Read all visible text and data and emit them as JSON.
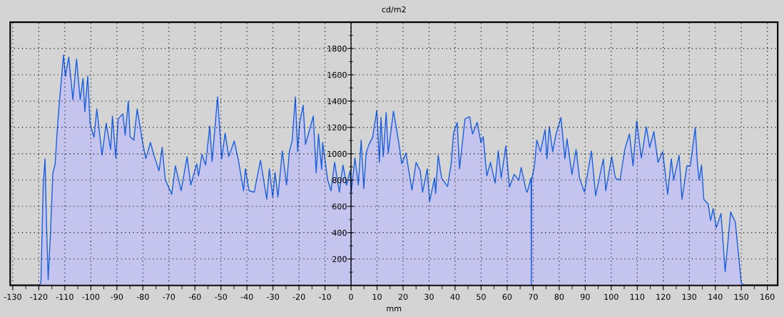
{
  "chart_data": {
    "type": "area",
    "title": "cd/m2",
    "xlabel": "mm",
    "xlim": [
      -131,
      164
    ],
    "ylim": [
      0,
      2000
    ],
    "xticks": [
      -130,
      {
        "value": -125,
        "label": null
      },
      -120,
      {
        "value": -115,
        "label": null
      },
      -110,
      {
        "value": -105,
        "label": null
      },
      -100,
      {
        "value": -95,
        "label": null
      },
      -90,
      {
        "value": -85,
        "label": null
      },
      -80,
      {
        "value": -75,
        "label": null
      },
      -70,
      {
        "value": -65,
        "label": null
      },
      -60,
      {
        "value": -55,
        "label": null
      },
      -50,
      {
        "value": -45,
        "label": null
      },
      -40,
      {
        "value": -35,
        "label": null
      },
      -30,
      {
        "value": -25,
        "label": null
      },
      -20,
      {
        "value": -15,
        "label": null
      },
      -10,
      {
        "value": -5,
        "label": null
      },
      0,
      {
        "value": 5,
        "label": null
      },
      10,
      {
        "value": 15,
        "label": null
      },
      20,
      {
        "value": 25,
        "label": null
      },
      30,
      {
        "value": 35,
        "label": null
      },
      40,
      {
        "value": 45,
        "label": null
      },
      50,
      {
        "value": 55,
        "label": null
      },
      60,
      {
        "value": 65,
        "label": null
      },
      70,
      {
        "value": 75,
        "label": null
      },
      80,
      {
        "value": 85,
        "label": null
      },
      90,
      {
        "value": 95,
        "label": null
      },
      100,
      {
        "value": 105,
        "label": null
      },
      110,
      {
        "value": 115,
        "label": null
      },
      120,
      {
        "value": 125,
        "label": null
      },
      130,
      {
        "value": 135,
        "label": null
      },
      140,
      {
        "value": 145,
        "label": null
      },
      150,
      {
        "value": 155,
        "label": null
      },
      160
    ],
    "yticks": [
      {
        "value": 100,
        "label": null
      },
      200,
      {
        "value": 300,
        "label": null
      },
      400,
      {
        "value": 500,
        "label": null
      },
      600,
      {
        "value": 700,
        "label": null
      },
      800,
      {
        "value": 900,
        "label": null
      },
      1000,
      {
        "value": 1100,
        "label": null
      },
      1200,
      {
        "value": 1300,
        "label": null
      },
      1400,
      {
        "value": 1500,
        "label": null
      },
      1600,
      {
        "value": 1700,
        "label": null
      },
      1800,
      {
        "value": 1900,
        "label": null
      }
    ],
    "grid": true,
    "legend": false,
    "series": [
      {
        "color": "#1a5fe0",
        "x": [
          -120,
          -119.2,
          -118.3,
          -117.6,
          -117.1,
          -116.4,
          -115.5,
          -114.6,
          -113.7,
          -113.1,
          -112.4,
          -111.6,
          -110.5,
          -109.8,
          -108.5,
          -106.9,
          -105.5,
          -104.1,
          -103.0,
          -102.3,
          -101.2,
          -100.3,
          -98.8,
          -97.7,
          -95.7,
          -94.1,
          -92.4,
          -91.7,
          -90.4,
          -89.5,
          -87.7,
          -86.8,
          -85.6,
          -84.9,
          -83.5,
          -82.2,
          -80.1,
          -78.9,
          -77.1,
          -75.6,
          -73.8,
          -72.6,
          -71.4,
          -68.9,
          -67.5,
          -65.3,
          -63.0,
          -61.6,
          -59.3,
          -58.6,
          -57.3,
          -55.9,
          -54.3,
          -53.4,
          -51.3,
          -49.7,
          -48.4,
          -47.0,
          -44.9,
          -43.4,
          -41.3,
          -40.6,
          -39.2,
          -37.2,
          -34.8,
          -32.4,
          -31.4,
          -30.1,
          -29.2,
          -28.1,
          -26.4,
          -24.8,
          -23.7,
          -22.6,
          -21.4,
          -20.5,
          -19.8,
          -18.4,
          -17.5,
          -14.5,
          -13.4,
          -12.5,
          -11.3,
          -10.9,
          -9.0,
          -7.7,
          -6.3,
          -4.5,
          -3.1,
          -1.7,
          -0.4,
          0.1,
          1.5,
          2.8,
          3.9,
          4.9,
          5.8,
          6.9,
          8.3,
          9.9,
          10.9,
          11.5,
          12.4,
          13.5,
          14.3,
          16.3,
          17.3,
          18.4,
          19.5,
          21.1,
          23.4,
          25.0,
          26.6,
          27.5,
          29.3,
          30.2,
          32.1,
          32.5,
          33.5,
          34.8,
          37.1,
          38.5,
          39.4,
          40.8,
          41.7,
          43.8,
          45.6,
          46.7,
          48.5,
          49.9,
          50.8,
          52.2,
          53.6,
          55.4,
          56.6,
          57.7,
          59.5,
          60.9,
          62.7,
          64.5,
          65.4,
          67.3,
          67.7,
          69.2,
          69.3,
          69.4,
          70.5,
          71.4,
          72.8,
          74.6,
          75.3,
          76.2,
          77.5,
          78.7,
          80.7,
          82.2,
          83.0,
          84.9,
          86.5,
          87.8,
          89.7,
          92.4,
          94.0,
          97.0,
          97.9,
          100.2,
          101.6,
          103.4,
          105.2,
          107.0,
          108.4,
          109.8,
          111.6,
          113.5,
          114.8,
          116.4,
          118.0,
          119.8,
          121.7,
          123.1,
          124.0,
          126.1,
          127.2,
          129.1,
          130.4,
          132.3,
          133.2,
          133.8,
          134.7,
          135.6,
          137.3,
          138.2,
          139.2,
          140.4,
          142.2,
          143.8,
          145.9,
          147.7,
          150.0,
          150.9
        ],
        "values": [
          0,
          16,
          762,
          962,
          508,
          43,
          400,
          854,
          924,
          1124,
          1319,
          1503,
          1751,
          1589,
          1735,
          1411,
          1719,
          1411,
          1573,
          1319,
          1589,
          1232,
          1124,
          1340,
          989,
          1232,
          1032,
          1286,
          968,
          1265,
          1303,
          1141,
          1400,
          1130,
          1103,
          1340,
          1086,
          962,
          1086,
          978,
          870,
          1049,
          805,
          692,
          908,
          719,
          978,
          762,
          924,
          832,
          995,
          914,
          1211,
          940,
          1432,
          962,
          1157,
          978,
          1097,
          962,
          719,
          886,
          719,
          708,
          951,
          654,
          886,
          670,
          859,
          670,
          1022,
          762,
          1016,
          1103,
          1432,
          1016,
          1232,
          1368,
          1070,
          1286,
          854,
          1151,
          881,
          1086,
          805,
          719,
          935,
          708,
          914,
          762,
          870,
          708,
          968,
          762,
          1103,
          735,
          1005,
          1070,
          1124,
          1330,
          935,
          1276,
          978,
          1314,
          1005,
          1324,
          1211,
          1076,
          924,
          1005,
          724,
          935,
          870,
          708,
          886,
          638,
          816,
          697,
          989,
          816,
          751,
          924,
          1157,
          1238,
          886,
          1265,
          1281,
          1151,
          1238,
          1086,
          1130,
          832,
          935,
          778,
          1022,
          816,
          1059,
          746,
          843,
          800,
          897,
          719,
          708,
          816,
          0,
          800,
          908,
          1103,
          1016,
          1184,
          962,
          1205,
          1016,
          1141,
          1276,
          962,
          1114,
          843,
          1032,
          816,
          708,
          1022,
          681,
          962,
          719,
          978,
          816,
          800,
          1032,
          1151,
          908,
          1249,
          968,
          1205,
          1049,
          1168,
          935,
          1016,
          692,
          962,
          800,
          989,
          654,
          908,
          908,
          1200,
          908,
          800,
          914,
          654,
          616,
          492,
          584,
          438,
          546,
          103,
          557,
          481,
          16,
          5
        ]
      }
    ]
  }
}
